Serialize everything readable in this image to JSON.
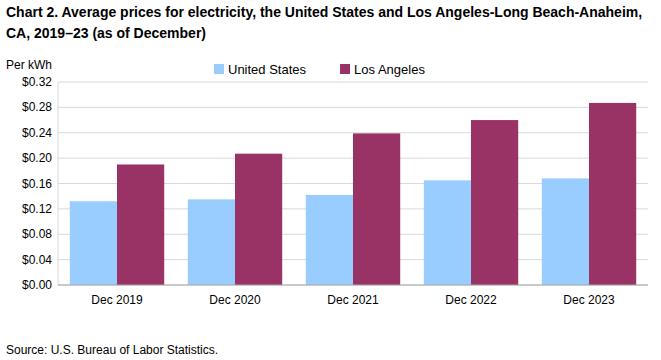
{
  "chart_data": {
    "type": "bar",
    "title": [
      "Chart 2. Average prices for electricity, the United States and Los Angeles-Long Beach-Anaheim,",
      "CA, 2019–23 (as of December)"
    ],
    "y_label": "Per kWh",
    "source": "Source: U.S. Bureau of Labor Statistics.",
    "categories": [
      "Dec 2019",
      "Dec 2020",
      "Dec 2021",
      "Dec 2022",
      "Dec 2023"
    ],
    "series": [
      {
        "name": "United States",
        "color": "#99ccff",
        "values": [
          0.132,
          0.135,
          0.142,
          0.165,
          0.168
        ]
      },
      {
        "name": "Los Angeles",
        "color": "#993366",
        "values": [
          0.19,
          0.207,
          0.239,
          0.26,
          0.287
        ]
      }
    ],
    "ylim": [
      0,
      0.32
    ],
    "yticks": [
      {
        "value": 0,
        "label": "$0.00"
      },
      {
        "value": 0.04,
        "label": "$0.04"
      },
      {
        "value": 0.08,
        "label": "$0.08"
      },
      {
        "value": 0.12,
        "label": "$0.12"
      },
      {
        "value": 0.16,
        "label": "$0.16"
      },
      {
        "value": 0.2,
        "label": "$0.20"
      },
      {
        "value": 0.24,
        "label": "$0.24"
      },
      {
        "value": 0.28,
        "label": "$0.28"
      },
      {
        "value": 0.32,
        "label": "$0.32"
      }
    ],
    "grid": true,
    "legend": "top"
  }
}
